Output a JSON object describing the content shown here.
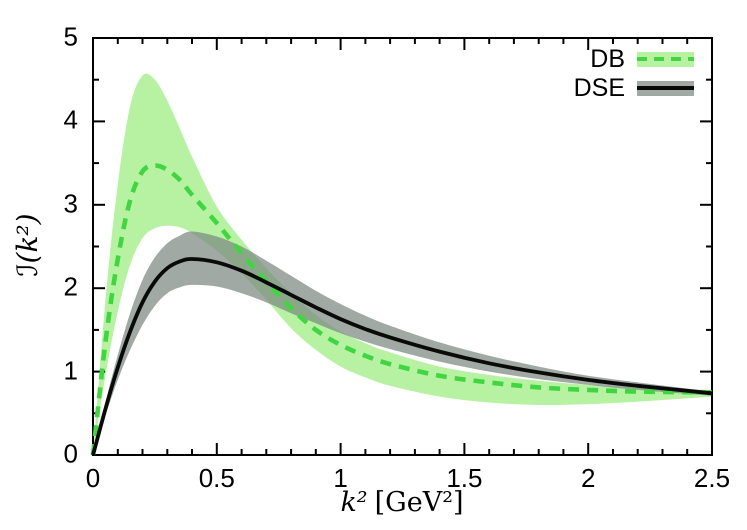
{
  "figure": {
    "background": "#ffffff",
    "frame_color": "#000000",
    "tick_color": "#000000"
  },
  "chart_data": {
    "type": "line",
    "title": "",
    "xlabel": "k² [GeV²]",
    "xlabel_var": "k²",
    "xlabel_unit": "[GeV²]",
    "ylabel": "ℐ(k²)",
    "ylabel_fn": "ℐ",
    "ylabel_arg": "(k²)",
    "xlim": [
      0,
      2.5
    ],
    "ylim": [
      0,
      5
    ],
    "grid": false,
    "legend_position": "top-right-inside",
    "x_major_ticks": [
      0,
      0.5,
      1,
      1.5,
      2,
      2.5
    ],
    "x_tick_labels": [
      "0",
      "0.5",
      "1",
      "1.5",
      "2",
      "2.5"
    ],
    "x_minor_step": 0.1,
    "y_major_ticks": [
      0,
      1,
      2,
      3,
      4,
      5
    ],
    "y_tick_labels": [
      "0",
      "1",
      "2",
      "3",
      "4",
      "5"
    ],
    "y_minor_step": 0.5,
    "x": [
      0,
      0.05,
      0.1,
      0.15,
      0.2,
      0.25,
      0.3,
      0.35,
      0.4,
      0.5,
      0.6,
      0.7,
      0.8,
      0.9,
      1.0,
      1.1,
      1.2,
      1.4,
      1.6,
      1.8,
      2.0,
      2.2,
      2.5
    ],
    "series": [
      {
        "name": "DB",
        "style": "dashed",
        "line_color": "#41d641",
        "band_color": "#b7f2a3",
        "y": [
          0,
          1.35,
          2.35,
          3.05,
          3.4,
          3.47,
          3.42,
          3.3,
          3.12,
          2.78,
          2.42,
          2.08,
          1.76,
          1.5,
          1.32,
          1.19,
          1.09,
          0.95,
          0.87,
          0.81,
          0.78,
          0.76,
          0.75
        ],
        "band_upper": [
          0,
          1.85,
          3.25,
          4.18,
          4.55,
          4.5,
          4.25,
          3.92,
          3.58,
          2.98,
          2.58,
          2.24,
          1.94,
          1.68,
          1.48,
          1.34,
          1.23,
          1.06,
          0.96,
          0.89,
          0.84,
          0.81,
          0.78
        ],
        "band_lower": [
          0,
          0.95,
          1.72,
          2.28,
          2.6,
          2.72,
          2.75,
          2.73,
          2.66,
          2.45,
          2.18,
          1.86,
          1.52,
          1.26,
          1.06,
          0.93,
          0.83,
          0.7,
          0.63,
          0.6,
          0.61,
          0.64,
          0.7
        ]
      },
      {
        "name": "DSE",
        "style": "solid",
        "line_color": "#0a0a0a",
        "band_color": "rgba(124,136,129,0.72)",
        "y": [
          0,
          0.55,
          1.05,
          1.48,
          1.83,
          2.08,
          2.24,
          2.32,
          2.35,
          2.31,
          2.21,
          2.07,
          1.92,
          1.77,
          1.63,
          1.51,
          1.41,
          1.24,
          1.1,
          0.99,
          0.9,
          0.83,
          0.74
        ],
        "band_upper": [
          0,
          0.63,
          1.2,
          1.7,
          2.1,
          2.37,
          2.54,
          2.63,
          2.68,
          2.62,
          2.5,
          2.33,
          2.15,
          1.97,
          1.81,
          1.67,
          1.55,
          1.35,
          1.19,
          1.06,
          0.95,
          0.87,
          0.76
        ],
        "band_lower": [
          0,
          0.47,
          0.9,
          1.26,
          1.56,
          1.79,
          1.94,
          2.01,
          2.04,
          2.02,
          1.94,
          1.83,
          1.7,
          1.58,
          1.46,
          1.36,
          1.27,
          1.12,
          1.0,
          0.91,
          0.84,
          0.78,
          0.71
        ]
      }
    ]
  }
}
